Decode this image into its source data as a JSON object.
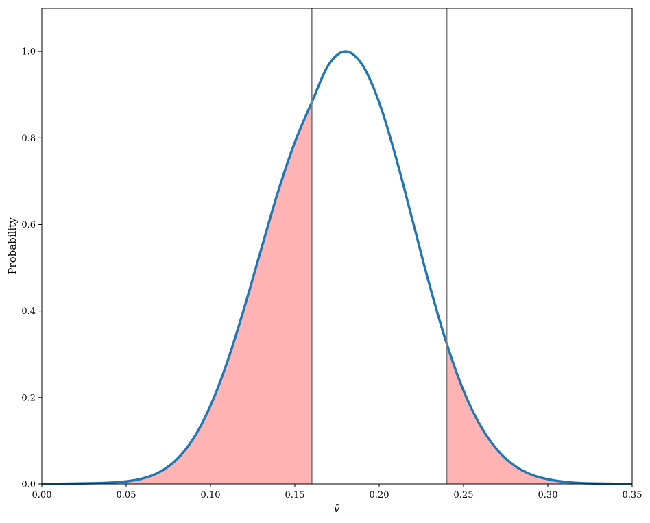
{
  "chart_data": {
    "type": "area",
    "xlabel": "ṽ",
    "ylabel": "Probability",
    "xlim": [
      0.0,
      0.35
    ],
    "ylim": [
      0.0,
      1.1
    ],
    "x_ticks": [
      "0.00",
      "0.05",
      "0.10",
      "0.15",
      "0.20",
      "0.25",
      "0.30",
      "0.35"
    ],
    "y_ticks": [
      "0.0",
      "0.2",
      "0.4",
      "0.6",
      "0.8",
      "1.0"
    ],
    "grid": false,
    "curve": {
      "color": "#1f77b4",
      "x": [
        0.0,
        0.02,
        0.04,
        0.05,
        0.06,
        0.07,
        0.08,
        0.09,
        0.1,
        0.11,
        0.12,
        0.13,
        0.14,
        0.15,
        0.16,
        0.17,
        0.18,
        0.19,
        0.2,
        0.21,
        0.22,
        0.23,
        0.24,
        0.25,
        0.26,
        0.27,
        0.28,
        0.29,
        0.3,
        0.31,
        0.32,
        0.33,
        0.35
      ],
      "y": [
        0.0,
        0.001,
        0.003,
        0.006,
        0.013,
        0.028,
        0.057,
        0.106,
        0.181,
        0.283,
        0.407,
        0.542,
        0.675,
        0.79,
        0.882,
        0.969,
        1.0,
        0.969,
        0.882,
        0.754,
        0.606,
        0.458,
        0.325,
        0.216,
        0.135,
        0.079,
        0.043,
        0.022,
        0.011,
        0.005,
        0.002,
        0.001,
        0.0
      ]
    },
    "vertical_lines": [
      {
        "x": 0.16,
        "color": "#808080"
      },
      {
        "x": 0.24,
        "color": "#808080"
      }
    ],
    "shaded_regions": [
      {
        "from": 0.0,
        "to": 0.16,
        "color": "#ffb3b3"
      },
      {
        "from": 0.24,
        "to": 0.35,
        "color": "#ffb3b3"
      }
    ]
  }
}
